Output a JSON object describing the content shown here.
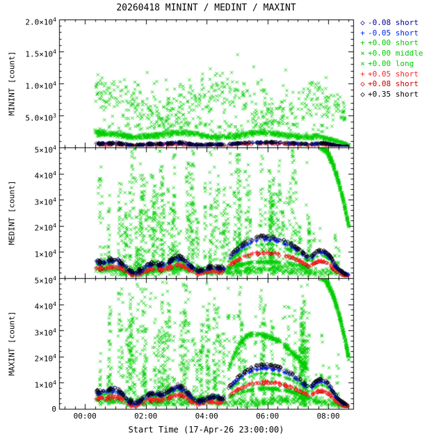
{
  "chart_data": {
    "type": "scatter",
    "title": "20260418 MININT / MEDINT / MAXINT",
    "xlabel": "Start Time (17-Apr-26 23:00:00)",
    "x_range_hours": [
      -0.85,
      8.82
    ],
    "x_minor_step": 0.3333,
    "x_ticks": [
      {
        "t": 0,
        "label": "00:00"
      },
      {
        "t": 2,
        "label": "02:00"
      },
      {
        "t": 4,
        "label": "04:00"
      },
      {
        "t": 6,
        "label": "06:00"
      },
      {
        "t": 8,
        "label": "08:00"
      }
    ],
    "colors": {
      "green": "#00CC00",
      "red": "#FF2222",
      "darkred": "#CC0000",
      "blue": "#0022EE",
      "navy": "#000099",
      "black": "#000000"
    },
    "legend": [
      {
        "symbol": "◇",
        "label": "-0.08 short",
        "color": "navy"
      },
      {
        "symbol": "+",
        "label": "-0.05 short",
        "color": "blue"
      },
      {
        "symbol": "+",
        "label": "+0.00 short",
        "color": "green"
      },
      {
        "symbol": "×",
        "label": "+0.00 middle",
        "color": "green"
      },
      {
        "symbol": "×",
        "label": "+0.00 long",
        "color": "green"
      },
      {
        "symbol": "+",
        "label": "+0.05 short",
        "color": "red"
      },
      {
        "symbol": "◇",
        "label": "+0.08 short",
        "color": "darkred"
      },
      {
        "symbol": "◇",
        "label": "+0.35 short",
        "color": "black"
      }
    ],
    "panels": [
      {
        "name": "MININT",
        "ylabel": "MININT [count]",
        "ymax": 20000,
        "ymajor": 5000,
        "yminor": 1000,
        "yticks": [
          {
            "v": 20000,
            "m": "2.0×10",
            "e": "4"
          },
          {
            "v": 15000,
            "m": "1.5×10",
            "e": "4"
          },
          {
            "v": 10000,
            "m": "1.0×10",
            "e": "4"
          },
          {
            "v": 5000,
            "m": "5.0×10",
            "e": "3"
          }
        ]
      },
      {
        "name": "MEDINT",
        "ylabel": "MEDINT [count]",
        "ymax": 50000,
        "ymajor": 10000,
        "yminor": 2000,
        "yticks": [
          {
            "v": 50000,
            "m": "5×10",
            "e": "4"
          },
          {
            "v": 40000,
            "m": "4×10",
            "e": "4"
          },
          {
            "v": 30000,
            "m": "3×10",
            "e": "4"
          },
          {
            "v": 20000,
            "m": "2×10",
            "e": "4"
          },
          {
            "v": 10000,
            "m": "1×10",
            "e": "4"
          }
        ]
      },
      {
        "name": "MAXINT",
        "ylabel": "MAXINT [count]",
        "ymax": 50000,
        "ymajor": 10000,
        "yminor": 2000,
        "yticks": [
          {
            "v": 50000,
            "m": "5×10",
            "e": "4"
          },
          {
            "v": 40000,
            "m": "4×10",
            "e": "4"
          },
          {
            "v": 30000,
            "m": "3×10",
            "e": "4"
          },
          {
            "v": 20000,
            "m": "2×10",
            "e": "4"
          },
          {
            "v": 10000,
            "m": "1×10",
            "e": "4"
          },
          {
            "v": 0,
            "m": "0",
            "e": ""
          }
        ]
      }
    ],
    "seed": 20260418,
    "series": [
      {
        "panel": 0,
        "type": "band",
        "marker": "x",
        "color": "green",
        "n": 850,
        "t0": 0.32,
        "t1": 8.68,
        "base": 1950,
        "amp": 330,
        "freq": 2.3,
        "phase": 0.6,
        "noise": 260,
        "decayFrom": 7.55,
        "decayTo": 0.15,
        "ymin": 100
      },
      {
        "panel": 0,
        "type": "cloud",
        "marker": "x",
        "color": "green",
        "n": 640,
        "t0": 0.35,
        "t1": 8.55,
        "yc": 7000,
        "spread": 2000,
        "wamp": 1700,
        "wfreq": 1.6,
        "wphase": 0.8,
        "ymin": 3300,
        "ymaxv": 11800,
        "skip": 0.18,
        "thinFrom": 7.7,
        "thinTo": 0.55
      },
      {
        "panel": 0,
        "type": "band",
        "marker": "x",
        "color": "green",
        "n": 130,
        "t0": 0.4,
        "t1": 8.3,
        "base": 3300,
        "amp": 500,
        "freq": 1.9,
        "phase": 2.0,
        "noise": 650,
        "ymin": 600
      },
      {
        "panel": 0,
        "type": "points",
        "marker": "x",
        "color": "green",
        "pts": [
          [
            5.02,
            14500
          ],
          [
            4.12,
            12300
          ],
          [
            5.55,
            12600
          ],
          [
            6.6,
            12100
          ]
        ]
      },
      {
        "panel": 1,
        "type": "columns",
        "marker": "x",
        "color": "green",
        "ncols": 92,
        "t0": 0.42,
        "t1": 7.42,
        "minPts": 5,
        "maxPts": 26,
        "yMin": 1200,
        "topBase": 7000,
        "topSpan": 44500,
        "topPow": 0.55
      },
      {
        "panel": 1,
        "type": "columns",
        "marker": "x",
        "color": "green",
        "ncols": 6,
        "t0": 7.5,
        "t1": 8.35,
        "minPts": 4,
        "maxPts": 10,
        "yMin": 1500,
        "topBase": 5000,
        "topSpan": 28000,
        "topPow": 1
      },
      {
        "panel": 1,
        "type": "band",
        "marker": "x",
        "color": "green",
        "n": 520,
        "t0": 0.35,
        "t1": 8.62,
        "base": 3000,
        "amp": 700,
        "freq": 2.1,
        "phase": 1.2,
        "noise": 950,
        "decayFrom": 7.9,
        "decayTo": 0.4,
        "ymin": 300
      },
      {
        "panel": 1,
        "type": "arc",
        "marker": "x",
        "color": "green",
        "n": 170,
        "t0": 4.72,
        "t1": 7.36,
        "edge": 3800,
        "peak": 6200,
        "peakPos": 0.45,
        "thick": 450,
        "gaps": [
          [
            5.52,
            5.64
          ],
          [
            6.44,
            6.56
          ]
        ]
      },
      {
        "panel": 1,
        "type": "fallcurve",
        "marker": "x",
        "color": "green",
        "n": 300,
        "t0": 7.76,
        "t1": 8.68,
        "y0": 50200,
        "y1": 19500,
        "noise": 650,
        "pow": 1.8
      },
      {
        "panel": 2,
        "type": "columns",
        "marker": "x",
        "color": "green",
        "ncols": 88,
        "t0": 0.42,
        "t1": 7.42,
        "minPts": 5,
        "maxPts": 26,
        "yMin": 1200,
        "topBase": 7000,
        "topSpan": 44500,
        "topPow": 0.55
      },
      {
        "panel": 2,
        "type": "columns",
        "marker": "x",
        "color": "green",
        "ncols": 6,
        "t0": 7.5,
        "t1": 8.35,
        "minPts": 4,
        "maxPts": 10,
        "yMin": 1500,
        "topBase": 5000,
        "topSpan": 28000,
        "topPow": 1
      },
      {
        "panel": 2,
        "type": "band",
        "marker": "x",
        "color": "green",
        "n": 500,
        "t0": 0.35,
        "t1": 8.62,
        "base": 2900,
        "amp": 700,
        "freq": 2.0,
        "phase": 0.4,
        "noise": 950,
        "decayFrom": 7.9,
        "decayTo": 0.4,
        "ymin": 300
      },
      {
        "panel": 2,
        "type": "arc",
        "marker": "x",
        "color": "green",
        "n": 330,
        "t0": 4.72,
        "t1": 7.32,
        "edge": 15000,
        "peak": 28600,
        "peakPos": 0.32,
        "thick": 900,
        "gaps": [
          [
            5.52,
            5.62
          ],
          [
            6.44,
            6.54
          ]
        ]
      },
      {
        "panel": 2,
        "type": "arc",
        "marker": "x",
        "color": "green",
        "n": 200,
        "t0": 4.72,
        "t1": 7.36,
        "edge": 4200,
        "peak": 7800,
        "peakPos": 0.45,
        "thick": 500,
        "gaps": [
          [
            5.52,
            5.64
          ],
          [
            6.44,
            6.56
          ]
        ]
      },
      {
        "panel": 2,
        "type": "fallcurve",
        "marker": "x",
        "color": "green",
        "n": 300,
        "t0": 7.76,
        "t1": 8.68,
        "y0": 50300,
        "y1": 19000,
        "noise": 650,
        "pow": 1.8
      },
      {
        "panel": 0,
        "type": "exposure_set",
        "wiggle": {
          "t0": 0.35,
          "t1": 4.6,
          "clusters": 13,
          "pts": 8,
          "base": 560,
          "amp1": 160,
          "f1": 2.7,
          "amp2": 90,
          "f2": 6.1,
          "noise": 90,
          "ymin": 60
        },
        "arc": {
          "t0": 4.72,
          "t1": 7.36,
          "edge": 520,
          "peak": 820,
          "peakPos": 0.45,
          "thick": 70,
          "pts": 45,
          "gaps": [
            [
              5.52,
              5.62
            ],
            [
              6.44,
              6.54
            ]
          ]
        },
        "arc2": {
          "t0": 7.44,
          "t1": 8.08,
          "edge": 520,
          "peak": 680,
          "peakPos": 0.5,
          "thick": 60,
          "pts": 14
        },
        "tail": {
          "t0": 8.06,
          "t1": 8.66,
          "y0": 520,
          "y1": 90,
          "noise": 40,
          "pts": 16
        },
        "series": [
          {
            "marker": "plus",
            "color": "green",
            "scale": 0.8
          },
          {
            "marker": "diamond",
            "color": "darkred",
            "scale": 0.7
          },
          {
            "marker": "plus",
            "color": "red",
            "scale": 0.75
          },
          {
            "marker": "plus",
            "color": "blue",
            "scale": 0.9
          },
          {
            "marker": "diamond",
            "color": "navy",
            "scale": 0.95
          },
          {
            "marker": "diamond",
            "color": "black",
            "scale": 1.0
          }
        ]
      },
      {
        "panel": 1,
        "type": "exposure_set",
        "wiggle": {
          "t0": 0.35,
          "t1": 4.6,
          "clusters": 13,
          "pts": 9,
          "base": 5300,
          "amp1": 2100,
          "f1": 2.7,
          "amp2": 1200,
          "f2": 6.1,
          "noise": 420,
          "ymin": 900
        },
        "arc": {
          "t0": 4.72,
          "t1": 7.36,
          "edge": 7800,
          "peak": 16200,
          "peakPos": 0.45,
          "thick": 300,
          "pts": 55,
          "gaps": [
            [
              5.52,
              5.62
            ],
            [
              6.44,
              6.54
            ]
          ]
        },
        "arc2": {
          "t0": 7.44,
          "t1": 8.08,
          "edge": 8200,
          "peak": 10800,
          "peakPos": 0.5,
          "thick": 250,
          "pts": 18
        },
        "tail": {
          "t0": 8.06,
          "t1": 8.66,
          "y0": 8800,
          "y1": 1300,
          "noise": 200,
          "pts": 20
        },
        "series": [
          {
            "marker": "plus",
            "color": "green",
            "scale": 0.8
          },
          {
            "marker": "diamond",
            "color": "darkred",
            "scale": 0.58
          },
          {
            "marker": "plus",
            "color": "red",
            "scale": 0.62
          },
          {
            "marker": "plus",
            "color": "blue",
            "scale": 0.9
          },
          {
            "marker": "diamond",
            "color": "navy",
            "scale": 0.95
          },
          {
            "marker": "diamond",
            "color": "black",
            "scale": 1.0
          }
        ]
      },
      {
        "panel": 2,
        "type": "exposure_set",
        "wiggle": {
          "t0": 0.35,
          "t1": 4.6,
          "clusters": 13,
          "pts": 9,
          "base": 5600,
          "amp1": 2200,
          "f1": 2.7,
          "amp2": 1250,
          "f2": 6.1,
          "noise": 440,
          "ymin": 950
        },
        "arc": {
          "t0": 4.72,
          "t1": 7.36,
          "edge": 8200,
          "peak": 17000,
          "peakPos": 0.45,
          "thick": 320,
          "pts": 55,
          "gaps": [
            [
              5.52,
              5.62
            ],
            [
              6.44,
              6.54
            ]
          ]
        },
        "arc2": {
          "t0": 7.44,
          "t1": 8.08,
          "edge": 8600,
          "peak": 11400,
          "peakPos": 0.5,
          "thick": 260,
          "pts": 18
        },
        "tail": {
          "t0": 8.06,
          "t1": 8.66,
          "y0": 9200,
          "y1": 1400,
          "noise": 210,
          "pts": 20
        },
        "series": [
          {
            "marker": "plus",
            "color": "green",
            "scale": 0.8
          },
          {
            "marker": "diamond",
            "color": "darkred",
            "scale": 0.58
          },
          {
            "marker": "plus",
            "color": "red",
            "scale": 0.62
          },
          {
            "marker": "plus",
            "color": "blue",
            "scale": 0.9
          },
          {
            "marker": "diamond",
            "color": "navy",
            "scale": 0.95
          },
          {
            "marker": "diamond",
            "color": "black",
            "scale": 1.0
          }
        ]
      }
    ]
  }
}
